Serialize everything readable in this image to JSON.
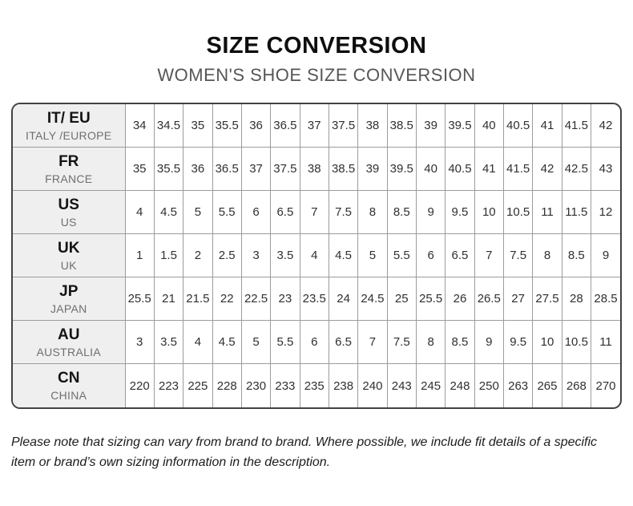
{
  "header": {
    "title": "SIZE CONVERSION",
    "subtitle": "WOMEN'S SHOE SIZE CONVERSION"
  },
  "table": {
    "rows": [
      {
        "id": "it-eu",
        "code": "IT/ EU",
        "region": "ITALY /EUROPE",
        "sizes": [
          "34",
          "34.5",
          "35",
          "35.5",
          "36",
          "36.5",
          "37",
          "37.5",
          "38",
          "38.5",
          "39",
          "39.5",
          "40",
          "40.5",
          "41",
          "41.5",
          "42"
        ]
      },
      {
        "id": "fr",
        "code": "FR",
        "region": "FRANCE",
        "sizes": [
          "35",
          "35.5",
          "36",
          "36.5",
          "37",
          "37.5",
          "38",
          "38.5",
          "39",
          "39.5",
          "40",
          "40.5",
          "41",
          "41.5",
          "42",
          "42.5",
          "43"
        ]
      },
      {
        "id": "us",
        "code": "US",
        "region": "US",
        "sizes": [
          "4",
          "4.5",
          "5",
          "5.5",
          "6",
          "6.5",
          "7",
          "7.5",
          "8",
          "8.5",
          "9",
          "9.5",
          "10",
          "10.5",
          "11",
          "11.5",
          "12"
        ]
      },
      {
        "id": "uk",
        "code": "UK",
        "region": "UK",
        "sizes": [
          "1",
          "1.5",
          "2",
          "2.5",
          "3",
          "3.5",
          "4",
          "4.5",
          "5",
          "5.5",
          "6",
          "6.5",
          "7",
          "7.5",
          "8",
          "8.5",
          "9"
        ]
      },
      {
        "id": "jp",
        "code": "JP",
        "region": "JAPAN",
        "sizes": [
          "25.5",
          "21",
          "21.5",
          "22",
          "22.5",
          "23",
          "23.5",
          "24",
          "24.5",
          "25",
          "25.5",
          "26",
          "26.5",
          "27",
          "27.5",
          "28",
          "28.5"
        ]
      },
      {
        "id": "au",
        "code": "AU",
        "region": "AUSTRALIA",
        "sizes": [
          "3",
          "3.5",
          "4",
          "4.5",
          "5",
          "5.5",
          "6",
          "6.5",
          "7",
          "7.5",
          "8",
          "8.5",
          "9",
          "9.5",
          "10",
          "10.5",
          "11"
        ]
      },
      {
        "id": "cn",
        "code": "CN",
        "region": "CHINA",
        "sizes": [
          "220",
          "223",
          "225",
          "228",
          "230",
          "233",
          "235",
          "238",
          "240",
          "243",
          "245",
          "248",
          "250",
          "263",
          "265",
          "268",
          "270"
        ]
      }
    ]
  },
  "footnote": {
    "text": "Please note that sizing can vary from brand to brand. Where possible, we include fit details of a specific item or brand’s own sizing information in the description."
  },
  "colors": {
    "background": "#ffffff",
    "title_text": "#0e0e0e",
    "subtitle_text": "#565656",
    "outer_border": "#424242",
    "grid_line": "#9c9c9c",
    "row_header_bg": "#efefef",
    "cell_text": "#303030"
  }
}
